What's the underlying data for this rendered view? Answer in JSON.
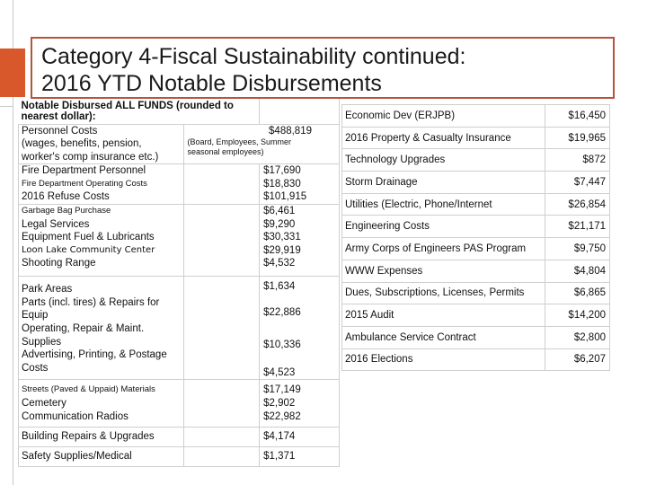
{
  "slide": {
    "title_line1": "Category 4-Fiscal Sustainability continued:",
    "title_line2": "2016 YTD Notable Disbursements"
  },
  "left_table": {
    "header": "Notable Disbursed ALL FUNDS (rounded to nearest dollar):",
    "personnel": {
      "label": [
        "Personnel Costs",
        "(wages, benefits, pension,",
        "worker's comp insurance etc.)"
      ],
      "note": [
        "(Board, Employees, Summer",
        "seasonal employees)"
      ],
      "value": "$488,819"
    },
    "group1": {
      "labels": [
        "Fire Department Personnel",
        "Fire Department Operating Costs",
        "2016 Refuse Costs"
      ],
      "values": [
        "$17,690",
        "$18,830",
        "$101,915"
      ]
    },
    "group2": {
      "labels": [
        "Garbage Bag Purchase",
        "Legal Services",
        "Equipment Fuel & Lubricants",
        "Loon Lake Community Center",
        "Shooting Range"
      ],
      "values": [
        "$6,461",
        "$9,290",
        "$30,331",
        "$29,919",
        "$4,532"
      ]
    },
    "group3": {
      "labels": [
        "Park Areas",
        "Parts (incl. tires) & Repairs for",
        "Equip",
        "Operating, Repair & Maint.",
        "Supplies",
        "Advertising, Printing, & Postage",
        "Costs"
      ],
      "values": [
        "$1,634",
        "$22,886",
        "$10,336",
        "$4,523"
      ]
    },
    "group4": {
      "labels": [
        "Streets (Paved & Uppaid) Materials",
        "Cemetery",
        "Communication Radios"
      ],
      "values": [
        "$17,149",
        "$2,902",
        "$22,982"
      ]
    },
    "building": {
      "label": "Building Repairs & Upgrades",
      "value": "$4,174"
    },
    "safety": {
      "label": "Safety Supplies/Medical",
      "value": "$1,371"
    }
  },
  "right_table": {
    "rows": [
      {
        "label": "Economic Dev (ERJPB)",
        "value": "$16,450"
      },
      {
        "label": "2016 Property & Casualty Insurance",
        "value": "$19,965"
      },
      {
        "label": "Technology Upgrades",
        "value": "$872"
      },
      {
        "label": "Storm Drainage",
        "value": "$7,447"
      },
      {
        "label": "Utilities (Electric, Phone/Internet",
        "value": "$26,854"
      },
      {
        "label": "Engineering Costs",
        "value": "$21,171"
      },
      {
        "label": "Army Corps of Engineers PAS Program",
        "value": "$9,750"
      },
      {
        "label": "WWW Expenses",
        "value": "$4,804"
      },
      {
        "label": "Dues, Subscriptions, Licenses, Permits",
        "value": "$6,865"
      },
      {
        "label": "2015 Audit",
        "value": "$14,200"
      },
      {
        "label": "Ambulance Service Contract",
        "value": "$2,800"
      },
      {
        "label": "2016 Elections",
        "value": "$6,207"
      }
    ]
  }
}
